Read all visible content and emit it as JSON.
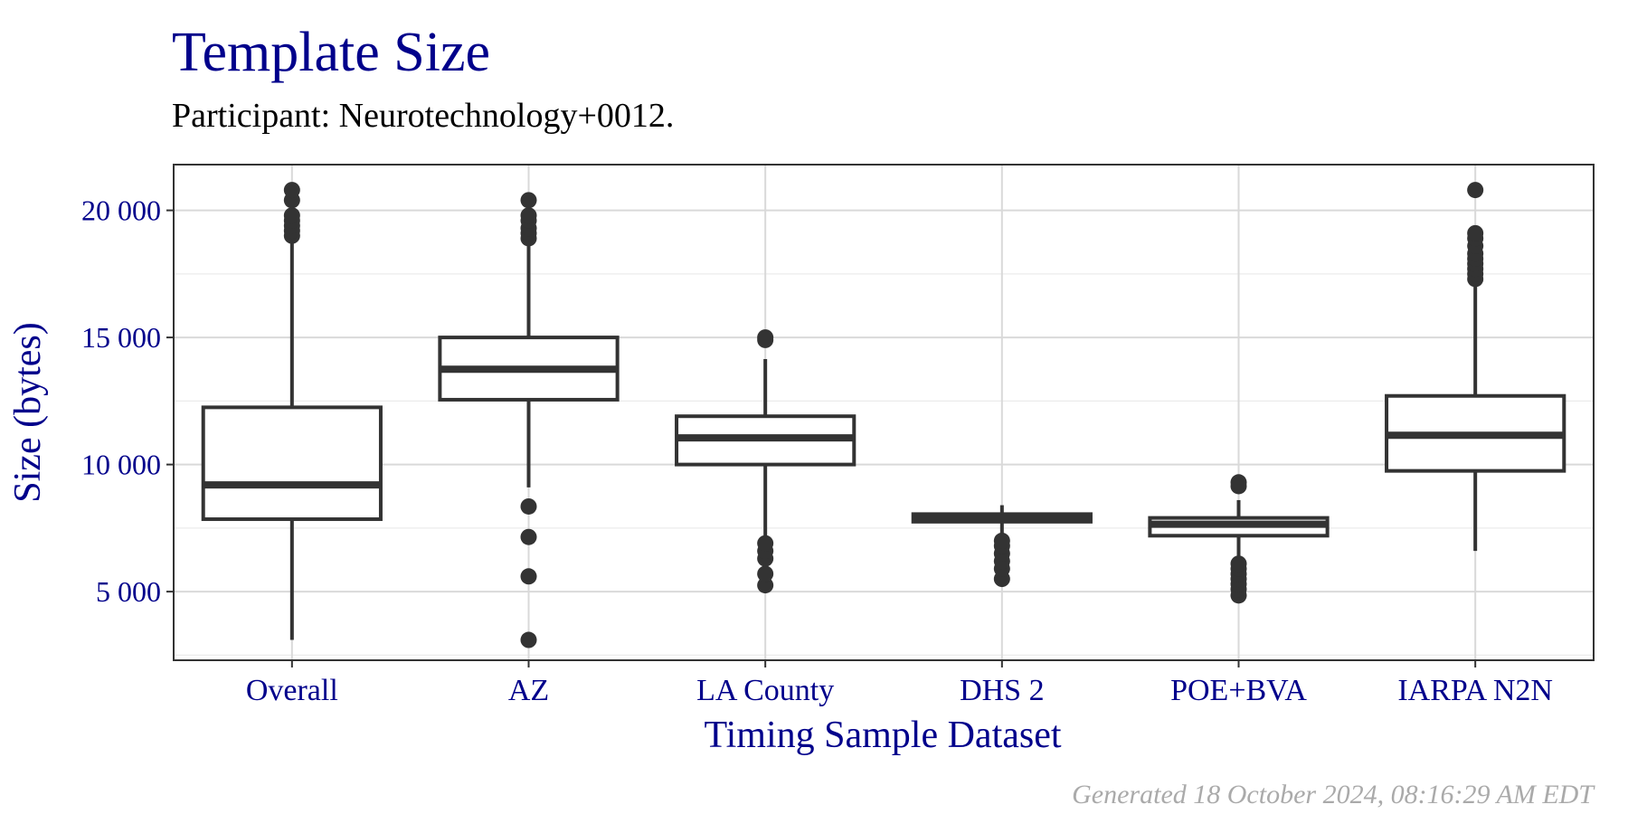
{
  "chart_data": {
    "type": "box",
    "title": "Template Size",
    "subtitle": "Participant: Neurotechnology+0012.",
    "xlabel": "Timing Sample Dataset",
    "ylabel": "Size (bytes)",
    "footer": "Generated 18 October 2024, 08:16:29 AM EDT",
    "ylim": [
      2300,
      21800
    ],
    "yticks": [
      5000,
      10000,
      15000,
      20000
    ],
    "ytick_labels": [
      "5 000",
      "10 000",
      "15 000",
      "20 000"
    ],
    "grid": true,
    "colors": {
      "title": "#00008B",
      "axis_text": "#00008B",
      "box": "#333333",
      "grid": "#D9D9D9",
      "footer": "#AAAAAA"
    },
    "categories": [
      "Overall",
      "AZ",
      "LA County",
      "DHS 2",
      "POE+BVA",
      "IARPA N2N"
    ],
    "boxes": [
      {
        "label": "Overall",
        "min": 3100,
        "q1": 7850,
        "median": 9200,
        "q3": 12250,
        "max": 18900,
        "outliers": [
          19000,
          19200,
          19400,
          19600,
          19800,
          20400,
          20800
        ]
      },
      {
        "label": "AZ",
        "min": 9100,
        "q1": 12550,
        "median": 13750,
        "q3": 15000,
        "max": 18800,
        "outliers": [
          3100,
          5600,
          7150,
          8350,
          18900,
          19100,
          19300,
          19600,
          19800,
          20400
        ]
      },
      {
        "label": "LA County",
        "min": 7000,
        "q1": 10000,
        "median": 11050,
        "q3": 11900,
        "max": 14150,
        "outliers": [
          5250,
          5700,
          6300,
          6600,
          6900,
          14900,
          15000
        ]
      },
      {
        "label": "DHS 2",
        "min": 7150,
        "q1": 7750,
        "median": 7900,
        "q3": 8050,
        "max": 8400,
        "outliers": [
          5500,
          5900,
          6200,
          6500,
          6800,
          7000
        ]
      },
      {
        "label": "POE+BVA",
        "min": 6200,
        "q1": 7200,
        "median": 7650,
        "q3": 7900,
        "max": 8600,
        "outliers": [
          4850,
          5100,
          5300,
          5500,
          5700,
          5900,
          6100,
          9150,
          9300
        ]
      },
      {
        "label": "IARPA N2N",
        "min": 6600,
        "q1": 9750,
        "median": 11150,
        "q3": 12700,
        "max": 17200,
        "outliers": [
          17300,
          17500,
          17700,
          17900,
          18100,
          18300,
          18600,
          18900,
          19100,
          20800
        ]
      }
    ]
  }
}
